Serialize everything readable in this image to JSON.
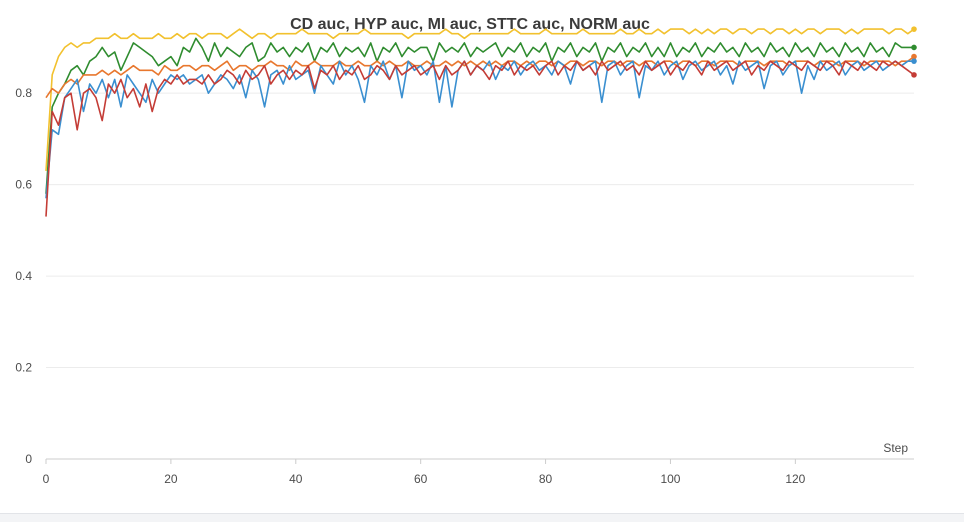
{
  "chart_data": {
    "type": "line",
    "title": "CD auc, HYP auc, MI auc, STTC auc, NORM auc",
    "xlabel": "Step",
    "ylabel": "",
    "xlim": [
      0,
      139
    ],
    "ylim": [
      0,
      0.96
    ],
    "xticks": [
      0,
      20,
      40,
      60,
      80,
      100,
      120
    ],
    "yticks": [
      0,
      0.2,
      0.4,
      0.6,
      0.8
    ],
    "grid": true,
    "legend": "none",
    "series": [
      {
        "color": "#f2c12e",
        "values": [
          0.63,
          0.84,
          0.88,
          0.9,
          0.91,
          0.9,
          0.91,
          0.91,
          0.92,
          0.92,
          0.92,
          0.93,
          0.92,
          0.92,
          0.93,
          0.92,
          0.92,
          0.92,
          0.93,
          0.92,
          0.92,
          0.93,
          0.92,
          0.93,
          0.93,
          0.92,
          0.93,
          0.93,
          0.93,
          0.92,
          0.93,
          0.94,
          0.93,
          0.92,
          0.93,
          0.93,
          0.92,
          0.93,
          0.93,
          0.93,
          0.93,
          0.94,
          0.93,
          0.93,
          0.93,
          0.93,
          0.92,
          0.93,
          0.93,
          0.93,
          0.93,
          0.94,
          0.93,
          0.93,
          0.93,
          0.93,
          0.93,
          0.93,
          0.92,
          0.93,
          0.93,
          0.93,
          0.93,
          0.93,
          0.94,
          0.93,
          0.93,
          0.92,
          0.93,
          0.93,
          0.93,
          0.93,
          0.93,
          0.93,
          0.93,
          0.94,
          0.93,
          0.93,
          0.93,
          0.93,
          0.94,
          0.93,
          0.93,
          0.93,
          0.93,
          0.93,
          0.94,
          0.93,
          0.93,
          0.93,
          0.93,
          0.93,
          0.94,
          0.93,
          0.93,
          0.94,
          0.93,
          0.93,
          0.94,
          0.93,
          0.94,
          0.94,
          0.94,
          0.93,
          0.94,
          0.93,
          0.94,
          0.93,
          0.94,
          0.94,
          0.93,
          0.94,
          0.94,
          0.93,
          0.94,
          0.94,
          0.93,
          0.94,
          0.94,
          0.93,
          0.94,
          0.93,
          0.94,
          0.94,
          0.93,
          0.94,
          0.94,
          0.94,
          0.93,
          0.94,
          0.93,
          0.94,
          0.94,
          0.94,
          0.94,
          0.93,
          0.94,
          0.94,
          0.93,
          0.94
        ]
      },
      {
        "color": "#2f8c2f",
        "values": [
          0.58,
          0.77,
          0.8,
          0.82,
          0.85,
          0.86,
          0.84,
          0.87,
          0.88,
          0.9,
          0.88,
          0.89,
          0.85,
          0.88,
          0.91,
          0.9,
          0.89,
          0.88,
          0.86,
          0.87,
          0.88,
          0.86,
          0.9,
          0.89,
          0.92,
          0.9,
          0.87,
          0.91,
          0.88,
          0.9,
          0.89,
          0.88,
          0.9,
          0.91,
          0.87,
          0.88,
          0.91,
          0.89,
          0.9,
          0.88,
          0.9,
          0.89,
          0.91,
          0.87,
          0.9,
          0.89,
          0.91,
          0.88,
          0.9,
          0.89,
          0.9,
          0.88,
          0.91,
          0.87,
          0.9,
          0.89,
          0.91,
          0.88,
          0.9,
          0.89,
          0.9,
          0.9,
          0.87,
          0.91,
          0.89,
          0.9,
          0.89,
          0.91,
          0.88,
          0.9,
          0.89,
          0.9,
          0.91,
          0.88,
          0.9,
          0.89,
          0.91,
          0.88,
          0.9,
          0.89,
          0.91,
          0.87,
          0.9,
          0.89,
          0.91,
          0.88,
          0.9,
          0.89,
          0.91,
          0.87,
          0.9,
          0.89,
          0.91,
          0.88,
          0.9,
          0.89,
          0.91,
          0.88,
          0.9,
          0.88,
          0.91,
          0.88,
          0.9,
          0.89,
          0.91,
          0.88,
          0.9,
          0.89,
          0.91,
          0.89,
          0.9,
          0.88,
          0.91,
          0.89,
          0.9,
          0.88,
          0.91,
          0.89,
          0.9,
          0.88,
          0.91,
          0.89,
          0.9,
          0.88,
          0.91,
          0.89,
          0.9,
          0.88,
          0.91,
          0.89,
          0.9,
          0.88,
          0.91,
          0.89,
          0.9,
          0.88,
          0.91,
          0.9,
          0.9,
          0.9
        ]
      },
      {
        "color": "#e8772e",
        "values": [
          0.79,
          0.81,
          0.8,
          0.82,
          0.83,
          0.82,
          0.84,
          0.84,
          0.84,
          0.85,
          0.84,
          0.85,
          0.84,
          0.85,
          0.86,
          0.85,
          0.85,
          0.85,
          0.84,
          0.86,
          0.85,
          0.85,
          0.86,
          0.86,
          0.85,
          0.86,
          0.86,
          0.85,
          0.86,
          0.87,
          0.85,
          0.86,
          0.86,
          0.85,
          0.86,
          0.86,
          0.87,
          0.86,
          0.86,
          0.85,
          0.87,
          0.86,
          0.86,
          0.87,
          0.86,
          0.86,
          0.86,
          0.87,
          0.86,
          0.86,
          0.87,
          0.86,
          0.86,
          0.87,
          0.86,
          0.87,
          0.86,
          0.86,
          0.87,
          0.86,
          0.86,
          0.87,
          0.86,
          0.86,
          0.87,
          0.86,
          0.87,
          0.86,
          0.87,
          0.86,
          0.87,
          0.86,
          0.87,
          0.86,
          0.87,
          0.87,
          0.86,
          0.87,
          0.86,
          0.87,
          0.87,
          0.86,
          0.87,
          0.86,
          0.87,
          0.87,
          0.86,
          0.87,
          0.87,
          0.86,
          0.87,
          0.87,
          0.86,
          0.87,
          0.87,
          0.86,
          0.87,
          0.87,
          0.86,
          0.87,
          0.87,
          0.86,
          0.87,
          0.87,
          0.86,
          0.87,
          0.87,
          0.86,
          0.87,
          0.87,
          0.87,
          0.86,
          0.87,
          0.87,
          0.87,
          0.86,
          0.87,
          0.87,
          0.87,
          0.86,
          0.87,
          0.87,
          0.87,
          0.86,
          0.87,
          0.87,
          0.87,
          0.86,
          0.87,
          0.87,
          0.87,
          0.86,
          0.87,
          0.87,
          0.87,
          0.87,
          0.86,
          0.87,
          0.87,
          0.88
        ]
      },
      {
        "color": "#3a8fd0",
        "values": [
          0.57,
          0.72,
          0.71,
          0.79,
          0.81,
          0.83,
          0.76,
          0.82,
          0.8,
          0.83,
          0.79,
          0.83,
          0.77,
          0.84,
          0.82,
          0.8,
          0.78,
          0.83,
          0.8,
          0.82,
          0.84,
          0.83,
          0.84,
          0.82,
          0.83,
          0.84,
          0.8,
          0.82,
          0.84,
          0.83,
          0.81,
          0.84,
          0.79,
          0.85,
          0.83,
          0.77,
          0.84,
          0.85,
          0.82,
          0.86,
          0.83,
          0.84,
          0.85,
          0.8,
          0.86,
          0.84,
          0.82,
          0.87,
          0.84,
          0.86,
          0.83,
          0.78,
          0.86,
          0.84,
          0.87,
          0.83,
          0.86,
          0.79,
          0.87,
          0.85,
          0.86,
          0.84,
          0.87,
          0.78,
          0.86,
          0.77,
          0.85,
          0.87,
          0.84,
          0.86,
          0.85,
          0.87,
          0.83,
          0.86,
          0.85,
          0.87,
          0.84,
          0.86,
          0.87,
          0.85,
          0.86,
          0.84,
          0.87,
          0.86,
          0.82,
          0.87,
          0.85,
          0.86,
          0.87,
          0.78,
          0.86,
          0.87,
          0.84,
          0.86,
          0.87,
          0.79,
          0.86,
          0.85,
          0.87,
          0.84,
          0.86,
          0.87,
          0.83,
          0.86,
          0.87,
          0.85,
          0.86,
          0.87,
          0.84,
          0.86,
          0.82,
          0.87,
          0.85,
          0.86,
          0.87,
          0.81,
          0.86,
          0.87,
          0.84,
          0.86,
          0.87,
          0.8,
          0.86,
          0.83,
          0.87,
          0.85,
          0.86,
          0.87,
          0.84,
          0.86,
          0.87,
          0.85,
          0.86,
          0.87,
          0.85,
          0.86,
          0.87,
          0.86,
          0.87,
          0.87
        ]
      },
      {
        "color": "#c43c36",
        "values": [
          0.53,
          0.76,
          0.73,
          0.79,
          0.8,
          0.72,
          0.8,
          0.81,
          0.79,
          0.74,
          0.82,
          0.8,
          0.83,
          0.79,
          0.81,
          0.77,
          0.82,
          0.76,
          0.81,
          0.83,
          0.82,
          0.84,
          0.82,
          0.83,
          0.83,
          0.82,
          0.84,
          0.82,
          0.83,
          0.85,
          0.84,
          0.82,
          0.85,
          0.83,
          0.84,
          0.86,
          0.82,
          0.84,
          0.85,
          0.83,
          0.85,
          0.84,
          0.86,
          0.81,
          0.85,
          0.84,
          0.86,
          0.83,
          0.85,
          0.84,
          0.86,
          0.83,
          0.84,
          0.86,
          0.85,
          0.83,
          0.86,
          0.84,
          0.85,
          0.86,
          0.84,
          0.85,
          0.86,
          0.83,
          0.86,
          0.84,
          0.85,
          0.87,
          0.84,
          0.86,
          0.85,
          0.83,
          0.86,
          0.85,
          0.87,
          0.84,
          0.86,
          0.85,
          0.86,
          0.84,
          0.86,
          0.87,
          0.84,
          0.86,
          0.85,
          0.87,
          0.85,
          0.86,
          0.84,
          0.87,
          0.85,
          0.86,
          0.87,
          0.85,
          0.86,
          0.84,
          0.87,
          0.85,
          0.86,
          0.87,
          0.84,
          0.86,
          0.85,
          0.87,
          0.86,
          0.84,
          0.87,
          0.85,
          0.86,
          0.87,
          0.85,
          0.86,
          0.87,
          0.84,
          0.86,
          0.85,
          0.87,
          0.86,
          0.85,
          0.87,
          0.86,
          0.85,
          0.87,
          0.86,
          0.85,
          0.87,
          0.86,
          0.84,
          0.87,
          0.86,
          0.85,
          0.87,
          0.86,
          0.85,
          0.87,
          0.86,
          0.87,
          0.86,
          0.85,
          0.84
        ]
      }
    ]
  }
}
